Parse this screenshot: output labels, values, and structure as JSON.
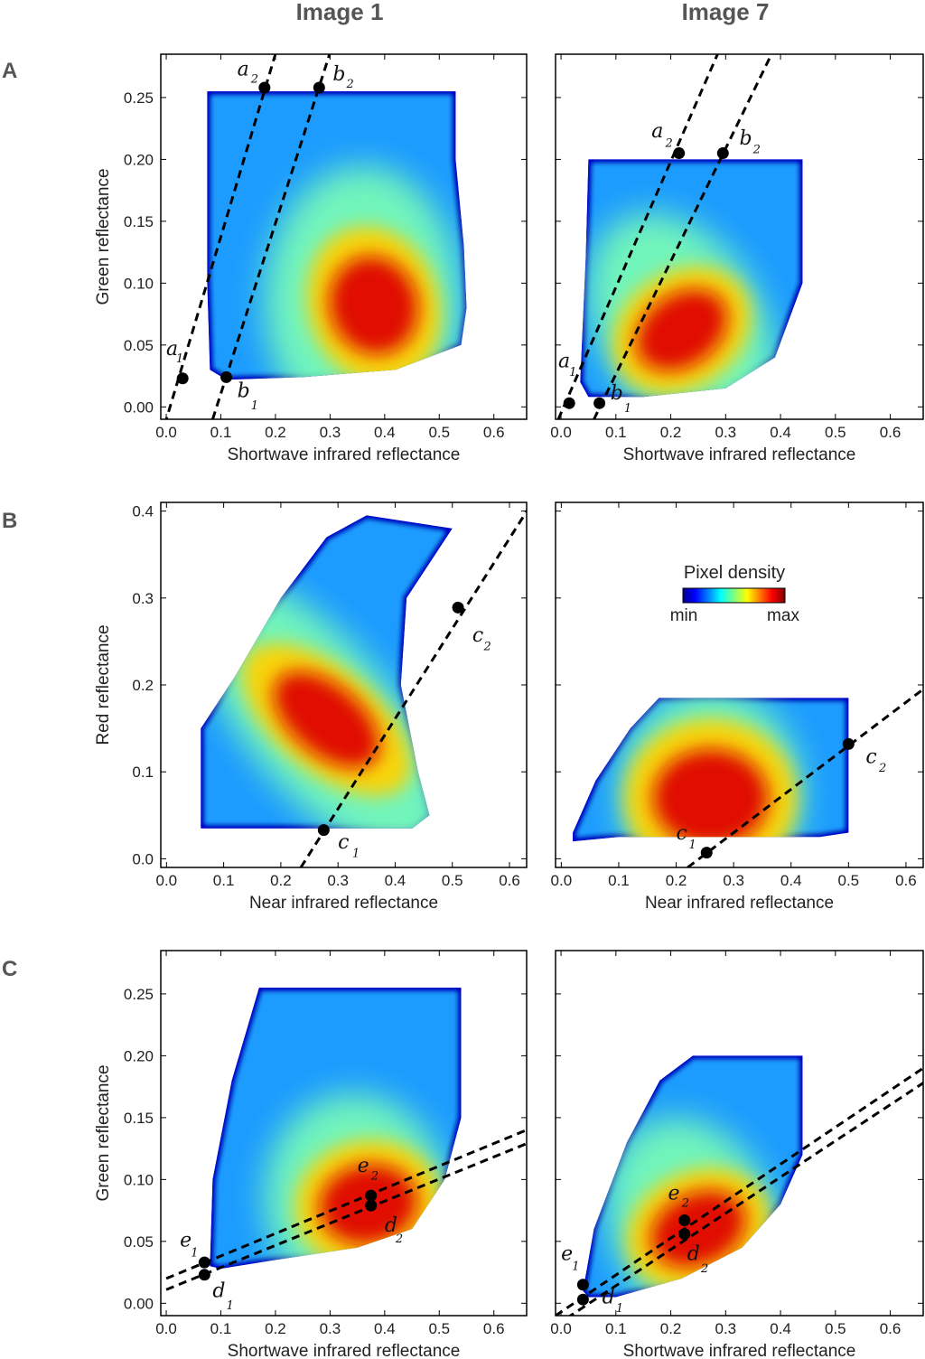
{
  "column_titles": [
    "Image 1",
    "Image 7"
  ],
  "row_labels": [
    "A",
    "B",
    "C"
  ],
  "legend": {
    "title": "Pixel density",
    "min_label": "min",
    "max_label": "max"
  },
  "colors": {
    "axis": "#000000",
    "line": "#000000",
    "point": "#000000"
  },
  "chart_data": [
    {
      "id": "A1",
      "type": "heatmap",
      "xlabel": "Shortwave infrared reflectance",
      "ylabel": "Green reflectance",
      "xlim": [
        -0.01,
        0.66
      ],
      "ylim": [
        -0.01,
        0.285
      ],
      "xticks": [
        0.0,
        0.1,
        0.2,
        0.3,
        0.4,
        0.5,
        0.6
      ],
      "xtick_labels": [
        "0.0",
        "0.1",
        "0.2",
        "0.3",
        "0.4",
        "0.5",
        "0.6"
      ],
      "yticks": [
        0.0,
        0.05,
        0.1,
        0.15,
        0.2,
        0.25
      ],
      "ytick_labels": [
        "0.00",
        "0.05",
        "0.10",
        "0.15",
        "0.20",
        "0.25"
      ],
      "density_cloud": {
        "outline": [
          [
            0.075,
            0.255
          ],
          [
            0.53,
            0.255
          ],
          [
            0.53,
            0.2
          ],
          [
            0.545,
            0.13
          ],
          [
            0.55,
            0.08
          ],
          [
            0.54,
            0.05
          ],
          [
            0.42,
            0.03
          ],
          [
            0.25,
            0.024
          ],
          [
            0.11,
            0.022
          ],
          [
            0.08,
            0.03
          ],
          [
            0.075,
            0.1
          ]
        ],
        "mid": {
          "cx": 0.36,
          "cy": 0.085,
          "rx": 0.18,
          "ry": 0.05
        },
        "core": {
          "cx": 0.38,
          "cy": 0.082,
          "rx": 0.08,
          "ry": 0.025,
          "angle": -18
        }
      },
      "lines": [
        {
          "x": [
            -0.01,
            0.21
          ],
          "y": [
            -0.025,
            0.3
          ]
        },
        {
          "x": [
            0.085,
            0.31
          ],
          "y": [
            -0.01,
            0.3
          ]
        }
      ],
      "points": [
        {
          "x": 0.03,
          "y": 0.023,
          "label": "a",
          "sub": "1",
          "lx": 0.0,
          "ly": 0.042,
          "sx": 0.018,
          "sy": 0.036
        },
        {
          "x": 0.11,
          "y": 0.024,
          "label": "b",
          "sub": "1",
          "lx": 0.13,
          "ly": 0.008,
          "sx": 0.155,
          "sy": -0.002
        },
        {
          "x": 0.18,
          "y": 0.258,
          "label": "a",
          "sub": "2",
          "lx": 0.13,
          "ly": 0.268,
          "sx": 0.155,
          "sy": 0.262
        },
        {
          "x": 0.28,
          "y": 0.258,
          "label": "b",
          "sub": "2",
          "lx": 0.305,
          "ly": 0.264,
          "sx": 0.33,
          "sy": 0.258
        }
      ]
    },
    {
      "id": "A7",
      "type": "heatmap",
      "xlabel": "Shortwave infrared reflectance",
      "ylabel": "",
      "xlim": [
        -0.01,
        0.66
      ],
      "ylim": [
        -0.01,
        0.285
      ],
      "xticks": [
        0.0,
        0.1,
        0.2,
        0.3,
        0.4,
        0.5,
        0.6
      ],
      "xtick_labels": [
        "0.0",
        "0.1",
        "0.2",
        "0.3",
        "0.4",
        "0.5",
        "0.6"
      ],
      "yticks": [],
      "ytick_labels": [],
      "density_cloud": {
        "outline": [
          [
            0.05,
            0.2
          ],
          [
            0.44,
            0.2
          ],
          [
            0.44,
            0.1
          ],
          [
            0.39,
            0.04
          ],
          [
            0.3,
            0.015
          ],
          [
            0.15,
            0.008
          ],
          [
            0.05,
            0.008
          ],
          [
            0.035,
            0.02
          ],
          [
            0.045,
            0.12
          ]
        ],
        "mid": {
          "cx": 0.22,
          "cy": 0.065,
          "rx": 0.15,
          "ry": 0.045,
          "angle": -30
        },
        "core": {
          "cx": 0.22,
          "cy": 0.062,
          "rx": 0.09,
          "ry": 0.018,
          "angle": -35
        }
      },
      "lines": [
        {
          "x": [
            -0.005,
            0.3
          ],
          "y": [
            -0.01,
            0.3
          ]
        },
        {
          "x": [
            0.06,
            0.4
          ],
          "y": [
            -0.01,
            0.3
          ]
        }
      ],
      "points": [
        {
          "x": 0.015,
          "y": 0.003,
          "label": "a",
          "sub": "1",
          "lx": -0.005,
          "ly": 0.032,
          "sx": 0.015,
          "sy": 0.025
        },
        {
          "x": 0.07,
          "y": 0.003,
          "label": "b",
          "sub": "1",
          "lx": 0.09,
          "ly": 0.006,
          "sx": 0.115,
          "sy": -0.004
        },
        {
          "x": 0.215,
          "y": 0.205,
          "label": "a",
          "sub": "2",
          "lx": 0.165,
          "ly": 0.218,
          "sx": 0.19,
          "sy": 0.21
        },
        {
          "x": 0.295,
          "y": 0.205,
          "label": "b",
          "sub": "2",
          "lx": 0.325,
          "ly": 0.212,
          "sx": 0.35,
          "sy": 0.205
        }
      ]
    },
    {
      "id": "B1",
      "type": "heatmap",
      "xlabel": "Near infrared reflectance",
      "ylabel": "Red reflectance",
      "xlim": [
        -0.01,
        0.63
      ],
      "ylim": [
        -0.01,
        0.41
      ],
      "xticks": [
        0.0,
        0.1,
        0.2,
        0.3,
        0.4,
        0.5,
        0.6
      ],
      "xtick_labels": [
        "0.0",
        "0.1",
        "0.2",
        "0.3",
        "0.4",
        "0.5",
        "0.6"
      ],
      "yticks": [
        0.0,
        0.1,
        0.2,
        0.3,
        0.4
      ],
      "ytick_labels": [
        "0.0",
        "0.1",
        "0.2",
        "0.3",
        "0.4"
      ],
      "density_cloud": {
        "outline": [
          [
            0.06,
            0.035
          ],
          [
            0.06,
            0.15
          ],
          [
            0.12,
            0.21
          ],
          [
            0.2,
            0.3
          ],
          [
            0.28,
            0.37
          ],
          [
            0.35,
            0.395
          ],
          [
            0.5,
            0.38
          ],
          [
            0.42,
            0.3
          ],
          [
            0.41,
            0.2
          ],
          [
            0.44,
            0.1
          ],
          [
            0.46,
            0.05
          ],
          [
            0.43,
            0.035
          ]
        ],
        "mid": {
          "cx": 0.27,
          "cy": 0.16,
          "rx": 0.13,
          "ry": 0.09,
          "angle": -40
        },
        "core": {
          "cx": 0.28,
          "cy": 0.16,
          "rx": 0.06,
          "ry": 0.045,
          "angle": -50
        }
      },
      "lines": [
        {
          "x": [
            0.235,
            0.64
          ],
          "y": [
            -0.01,
            0.41
          ]
        }
      ],
      "points": [
        {
          "x": 0.275,
          "y": 0.033,
          "label": "c",
          "sub": "1",
          "lx": 0.3,
          "ly": 0.012,
          "sx": 0.325,
          "sy": 0.002
        },
        {
          "x": 0.51,
          "y": 0.289,
          "label": "c",
          "sub": "2",
          "lx": 0.535,
          "ly": 0.25,
          "sx": 0.555,
          "sy": 0.24
        }
      ]
    },
    {
      "id": "B7",
      "type": "heatmap",
      "xlabel": "Near infrared reflectance",
      "ylabel": "",
      "xlim": [
        -0.01,
        0.63
      ],
      "ylim": [
        -0.01,
        0.41
      ],
      "xticks": [
        0.0,
        0.1,
        0.2,
        0.3,
        0.4,
        0.5,
        0.6
      ],
      "xtick_labels": [
        "0.0",
        "0.1",
        "0.2",
        "0.3",
        "0.4",
        "0.5",
        "0.6"
      ],
      "yticks": [],
      "ytick_labels": [],
      "density_cloud": {
        "outline": [
          [
            0.02,
            0.02
          ],
          [
            0.02,
            0.03
          ],
          [
            0.06,
            0.09
          ],
          [
            0.12,
            0.15
          ],
          [
            0.17,
            0.185
          ],
          [
            0.5,
            0.185
          ],
          [
            0.5,
            0.03
          ],
          [
            0.45,
            0.025
          ],
          [
            0.1,
            0.025
          ]
        ],
        "mid": {
          "cx": 0.26,
          "cy": 0.075,
          "rx": 0.16,
          "ry": 0.055
        },
        "core": {
          "cx": 0.26,
          "cy": 0.07,
          "rx": 0.1,
          "ry": 0.035
        }
      },
      "lines": [
        {
          "x": [
            0.22,
            0.64
          ],
          "y": [
            -0.01,
            0.2
          ]
        }
      ],
      "points": [
        {
          "x": 0.253,
          "y": 0.007,
          "label": "c",
          "sub": "1",
          "lx": 0.2,
          "ly": 0.022,
          "sx": 0.222,
          "sy": 0.012
        },
        {
          "x": 0.5,
          "y": 0.132,
          "label": "c",
          "sub": "2",
          "lx": 0.53,
          "ly": 0.11,
          "sx": 0.553,
          "sy": 0.1
        }
      ]
    },
    {
      "id": "C1",
      "type": "heatmap",
      "xlabel": "Shortwave infrared reflectance",
      "ylabel": "Green reflectance",
      "xlim": [
        -0.01,
        0.66
      ],
      "ylim": [
        -0.01,
        0.285
      ],
      "xticks": [
        0.0,
        0.1,
        0.2,
        0.3,
        0.4,
        0.5,
        0.6
      ],
      "xtick_labels": [
        "0.0",
        "0.1",
        "0.2",
        "0.3",
        "0.4",
        "0.5",
        "0.6"
      ],
      "yticks": [
        0.0,
        0.05,
        0.1,
        0.15,
        0.2,
        0.25
      ],
      "ytick_labels": [
        "0.00",
        "0.05",
        "0.10",
        "0.15",
        "0.20",
        "0.25"
      ],
      "density_cloud": {
        "outline": [
          [
            0.17,
            0.255
          ],
          [
            0.54,
            0.255
          ],
          [
            0.54,
            0.15
          ],
          [
            0.51,
            0.1
          ],
          [
            0.45,
            0.06
          ],
          [
            0.35,
            0.045
          ],
          [
            0.2,
            0.035
          ],
          [
            0.1,
            0.028
          ],
          [
            0.08,
            0.03
          ],
          [
            0.085,
            0.1
          ],
          [
            0.12,
            0.18
          ]
        ],
        "mid": {
          "cx": 0.35,
          "cy": 0.082,
          "rx": 0.17,
          "ry": 0.04,
          "angle": -8
        },
        "core": {
          "cx": 0.37,
          "cy": 0.08,
          "rx": 0.09,
          "ry": 0.02,
          "angle": -10
        }
      },
      "lines": [
        {
          "x": [
            0.0,
            0.66
          ],
          "y": [
            0.02,
            0.14
          ]
        },
        {
          "x": [
            0.0,
            0.66
          ],
          "y": [
            0.011,
            0.129
          ]
        }
      ],
      "points": [
        {
          "x": 0.07,
          "y": 0.033,
          "label": "e",
          "sub": "1",
          "lx": 0.025,
          "ly": 0.046,
          "sx": 0.045,
          "sy": 0.038
        },
        {
          "x": 0.07,
          "y": 0.023,
          "label": "d",
          "sub": "1",
          "lx": 0.085,
          "ly": 0.005,
          "sx": 0.11,
          "sy": -0.005
        },
        {
          "x": 0.375,
          "y": 0.087,
          "label": "e",
          "sub": "2",
          "lx": 0.35,
          "ly": 0.106,
          "sx": 0.375,
          "sy": 0.1
        },
        {
          "x": 0.375,
          "y": 0.079,
          "label": "d",
          "sub": "2",
          "lx": 0.4,
          "ly": 0.058,
          "sx": 0.42,
          "sy": 0.049
        }
      ]
    },
    {
      "id": "C7",
      "type": "heatmap",
      "xlabel": "Shortwave infrared reflectance",
      "ylabel": "",
      "xlim": [
        -0.01,
        0.66
      ],
      "ylim": [
        -0.01,
        0.285
      ],
      "xticks": [
        0.0,
        0.1,
        0.2,
        0.3,
        0.4,
        0.5,
        0.6
      ],
      "xtick_labels": [
        "0.0",
        "0.1",
        "0.2",
        "0.3",
        "0.4",
        "0.5",
        "0.6"
      ],
      "yticks": [],
      "ytick_labels": [],
      "density_cloud": {
        "outline": [
          [
            0.24,
            0.2
          ],
          [
            0.44,
            0.2
          ],
          [
            0.44,
            0.12
          ],
          [
            0.4,
            0.08
          ],
          [
            0.33,
            0.045
          ],
          [
            0.22,
            0.02
          ],
          [
            0.1,
            0.005
          ],
          [
            0.05,
            0.005
          ],
          [
            0.04,
            0.01
          ],
          [
            0.06,
            0.06
          ],
          [
            0.12,
            0.13
          ],
          [
            0.18,
            0.18
          ]
        ],
        "mid": {
          "cx": 0.24,
          "cy": 0.065,
          "rx": 0.15,
          "ry": 0.04,
          "angle": -22
        },
        "core": {
          "cx": 0.25,
          "cy": 0.06,
          "rx": 0.09,
          "ry": 0.018,
          "angle": -25
        }
      },
      "lines": [
        {
          "x": [
            -0.01,
            0.66
          ],
          "y": [
            -0.01,
            0.19
          ]
        },
        {
          "x": [
            -0.01,
            0.66
          ],
          "y": [
            -0.018,
            0.178
          ]
        }
      ],
      "points": [
        {
          "x": 0.04,
          "y": 0.015,
          "label": "e",
          "sub": "1",
          "lx": 0.0,
          "ly": 0.035,
          "sx": 0.02,
          "sy": 0.027
        },
        {
          "x": 0.04,
          "y": 0.003,
          "label": "d",
          "sub": "1",
          "lx": 0.075,
          "ly": 0.0,
          "sx": 0.1,
          "sy": -0.007
        },
        {
          "x": 0.225,
          "y": 0.067,
          "label": "e",
          "sub": "2",
          "lx": 0.195,
          "ly": 0.084,
          "sx": 0.22,
          "sy": 0.078
        },
        {
          "x": 0.225,
          "y": 0.056,
          "label": "d",
          "sub": "2",
          "lx": 0.23,
          "ly": 0.035,
          "sx": 0.255,
          "sy": 0.025
        }
      ]
    }
  ]
}
